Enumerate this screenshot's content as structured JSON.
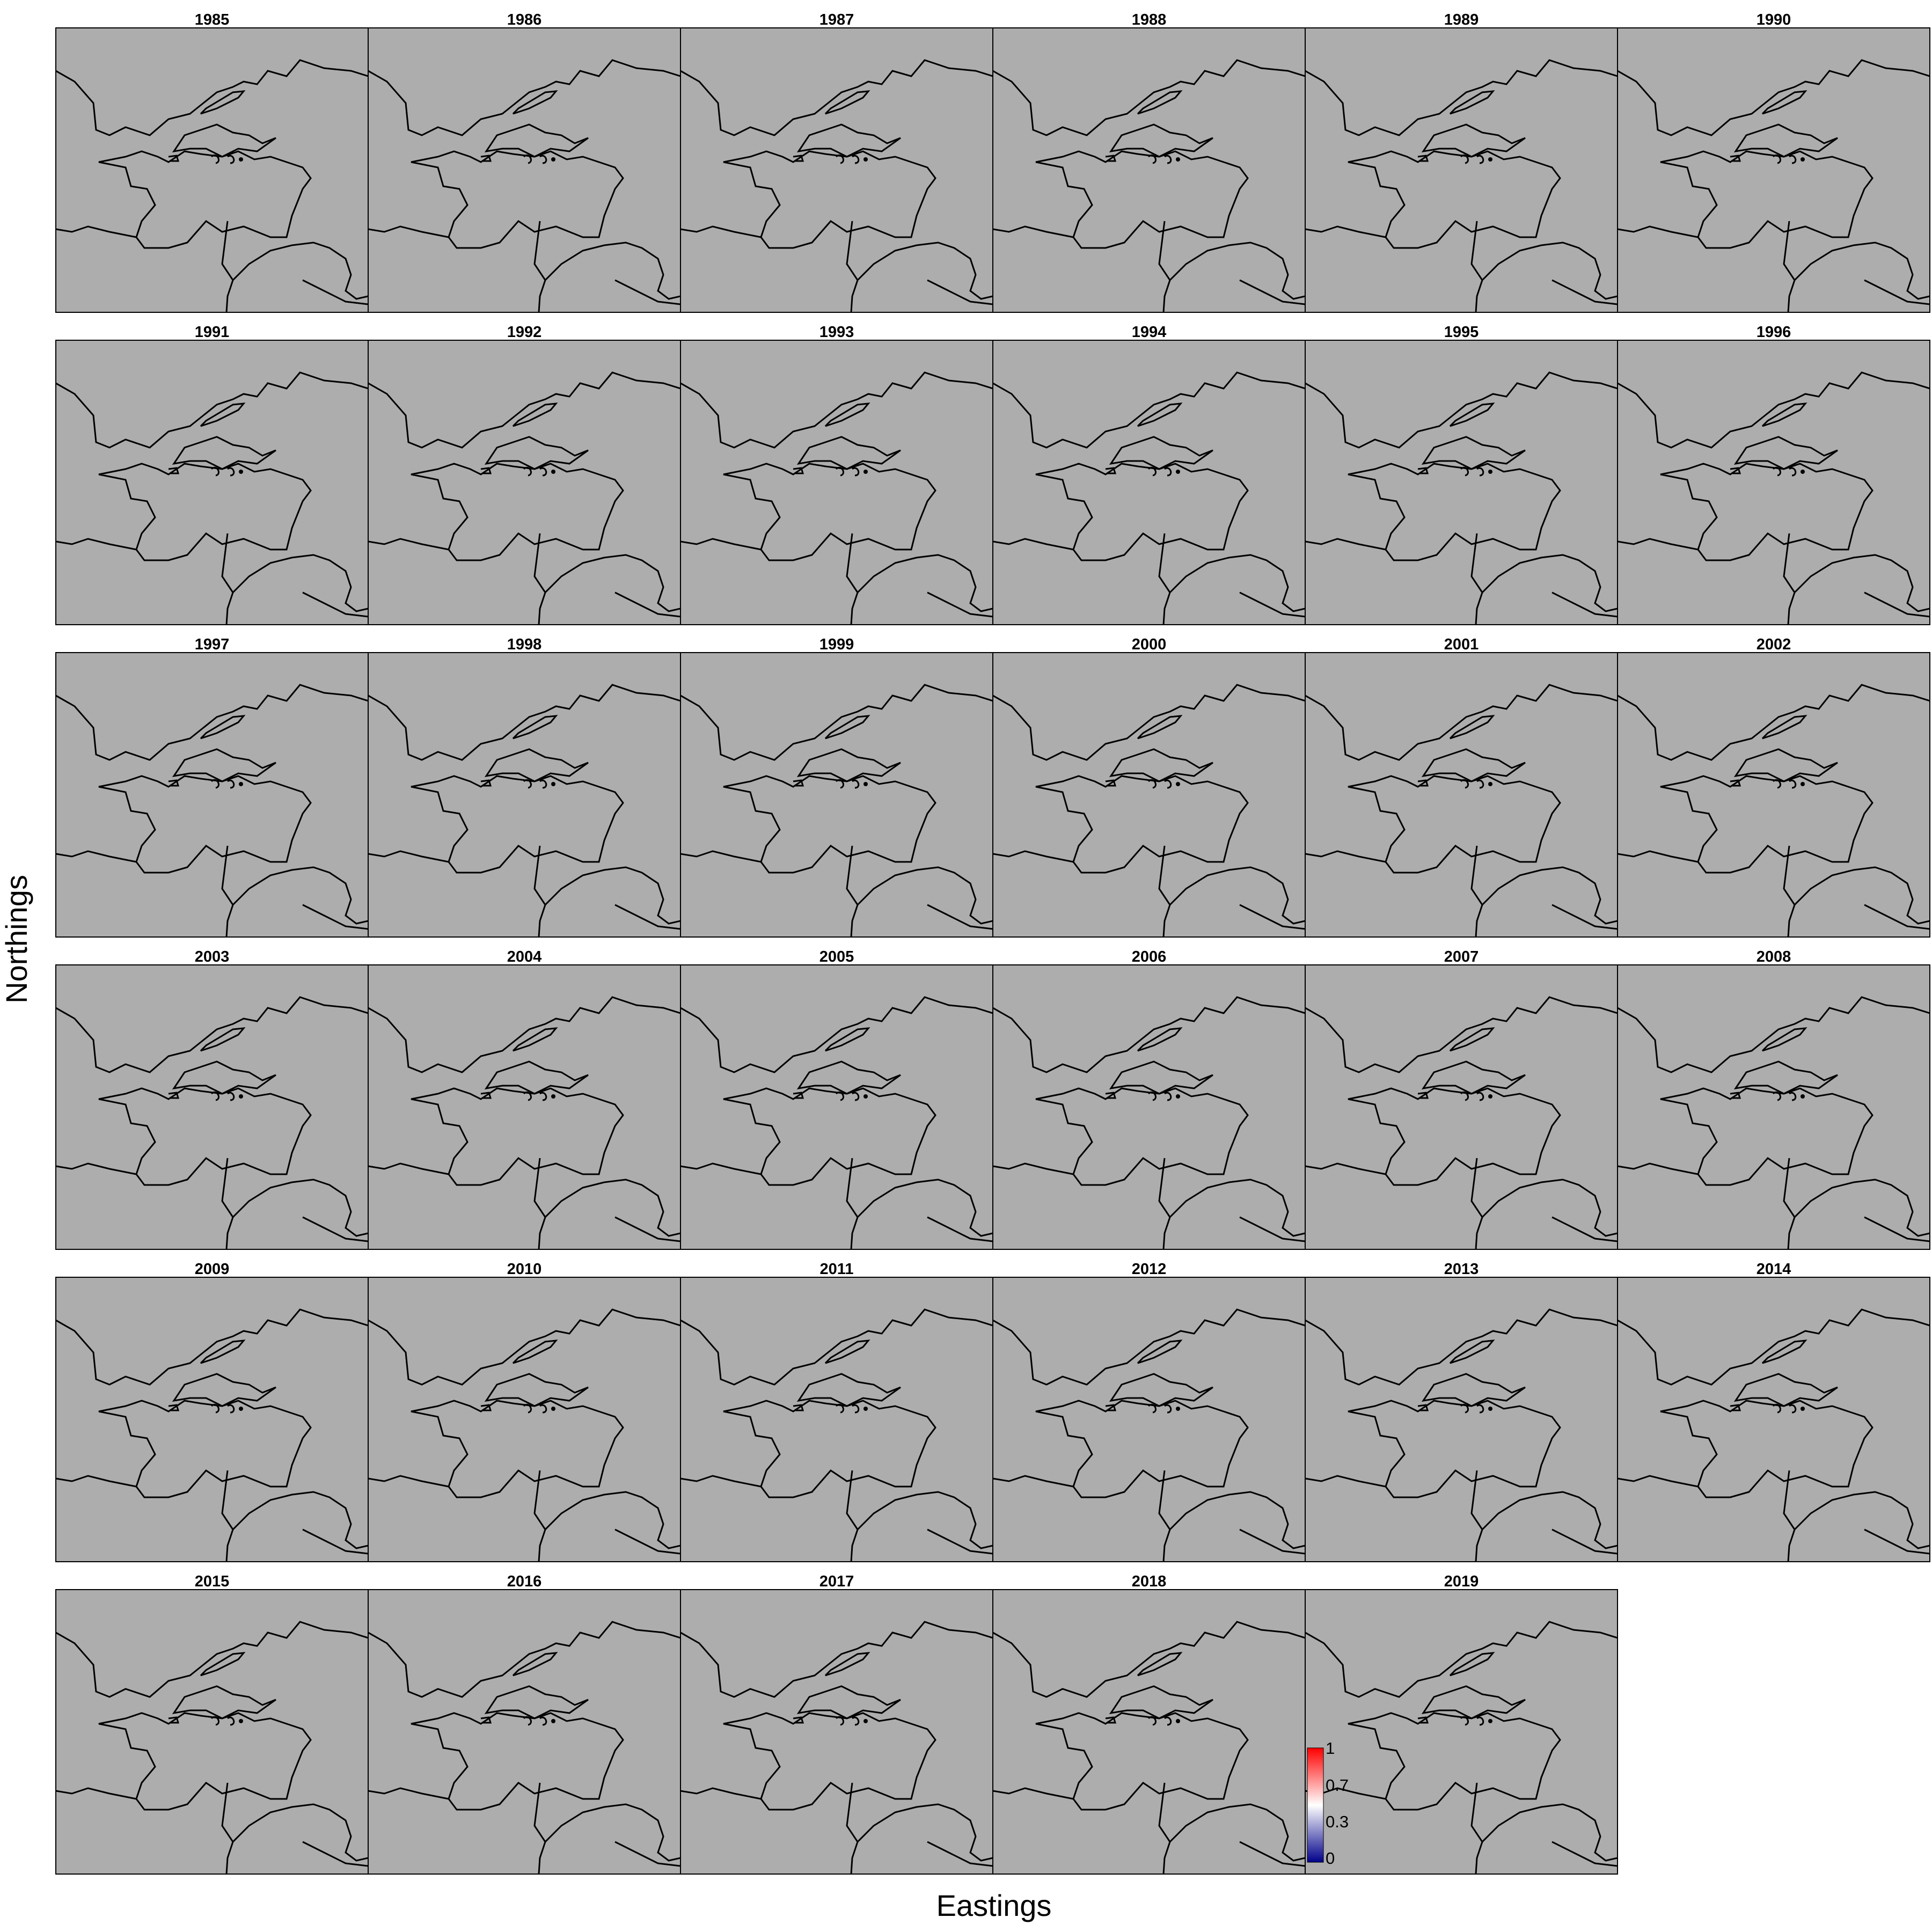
{
  "figure": {
    "xlabel": "Eastings",
    "ylabel": "Northings",
    "panel_fill": "#adadad",
    "border_color": "#000000"
  },
  "panels": [
    "1985",
    "1986",
    "1987",
    "1988",
    "1989",
    "1990",
    "1991",
    "1992",
    "1993",
    "1994",
    "1995",
    "1996",
    "1997",
    "1998",
    "1999",
    "2000",
    "2001",
    "2002",
    "2003",
    "2004",
    "2005",
    "2006",
    "2007",
    "2008",
    "2009",
    "2010",
    "2011",
    "2012",
    "2013",
    "2014",
    "2015",
    "2016",
    "2017",
    "2018",
    "2019"
  ],
  "legend": {
    "ticks": [
      "1",
      "0.7",
      "0.3",
      "0"
    ],
    "colors": {
      "high": "#ff0000",
      "mid": "#ffffff",
      "low": "#00008b"
    }
  }
}
